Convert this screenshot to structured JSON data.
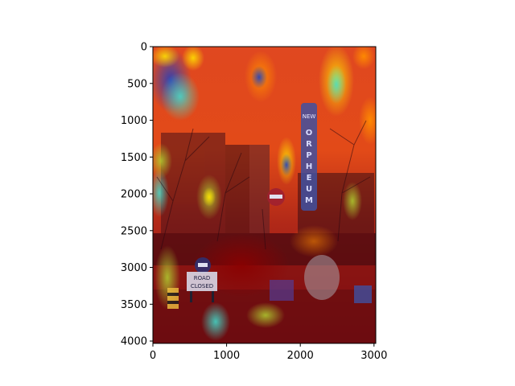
{
  "figure": {
    "type": "heatmap-overlay",
    "description": "Image with attention heatmap overlay",
    "colormap": "jet",
    "background_color": "#ffffff"
  },
  "chart_data": {
    "type": "heatmap",
    "title": "",
    "xlabel": "",
    "ylabel": "",
    "xlim": [
      0,
      3024
    ],
    "ylim": [
      4032,
      0
    ],
    "x_ticks": [
      0,
      1000,
      2000,
      3000
    ],
    "y_ticks": [
      0,
      500,
      1000,
      1500,
      2000,
      2500,
      3000,
      3500,
      4000
    ],
    "x_tick_labels": [
      "0",
      "1000",
      "2000",
      "3000"
    ],
    "y_tick_labels": [
      "0",
      "500",
      "1000",
      "1500",
      "2000",
      "2500",
      "3000",
      "3500",
      "4000"
    ],
    "grid": false,
    "legend": "none",
    "image_content": {
      "signs": [
        "NEW",
        "ORPHEUM",
        "ROAD CLOSED"
      ]
    }
  }
}
